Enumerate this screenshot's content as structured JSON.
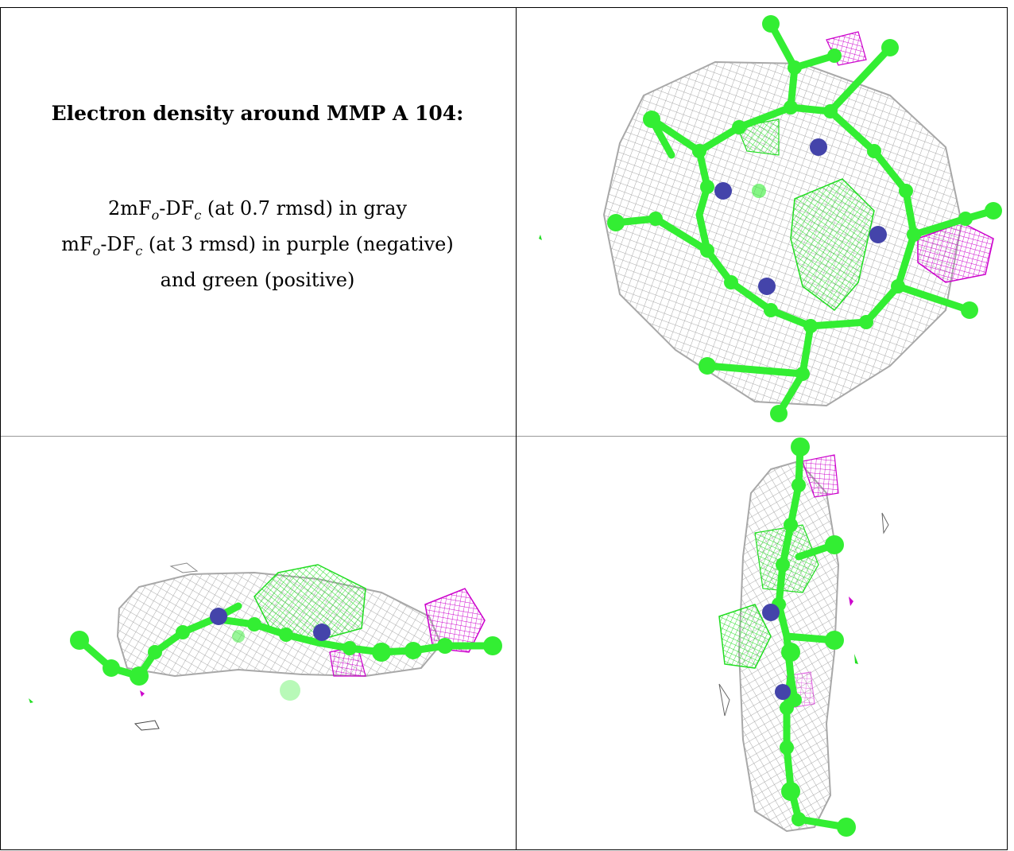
{
  "title": "Electron density around MMP A 104:",
  "legend": {
    "line1_prefix": "2mF",
    "line1_sub1": "o",
    "line1_mid": "-DF",
    "line1_sub2": "c",
    "line1_suffix": " (at 0.7 rmsd) in gray",
    "line2_prefix": "mF",
    "line2_sub1": "o",
    "line2_mid": "-DF",
    "line2_sub2": "c",
    "line2_suffix": " (at 3 rmsd) in purple (negative)",
    "line3": "and green (positive)"
  },
  "colors": {
    "mesh_gray": "#a8a8a8",
    "carbon_green": "#33ee33",
    "nitrogen_blue": "#4444aa",
    "density_green": "#22dd22",
    "density_purple": "#cc00cc"
  }
}
